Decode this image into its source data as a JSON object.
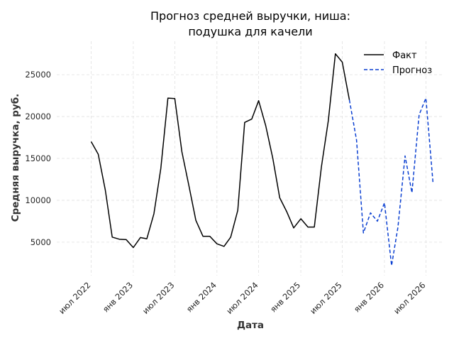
{
  "chart_data": {
    "type": "line",
    "title_lines": [
      "Прогноз средней выручки, ниша:",
      "подушка для качели"
    ],
    "xlabel": "Дата",
    "ylabel": "Средняя выручка, руб.",
    "x_ticks": [
      {
        "label": "июл 2022",
        "date": "2022-07-01"
      },
      {
        "label": "янв 2023",
        "date": "2023-01-01"
      },
      {
        "label": "июл 2023",
        "date": "2023-07-01"
      },
      {
        "label": "янв 2024",
        "date": "2024-01-01"
      },
      {
        "label": "июл 2024",
        "date": "2024-07-01"
      },
      {
        "label": "янв 2025",
        "date": "2025-01-01"
      },
      {
        "label": "июл 2025",
        "date": "2025-07-01"
      },
      {
        "label": "янв 2026",
        "date": "2026-01-01"
      },
      {
        "label": "июл 2026",
        "date": "2026-07-01"
      }
    ],
    "y_ticks": [
      5000,
      10000,
      15000,
      20000,
      25000
    ],
    "xlim": [
      "2022-02-01",
      "2026-09-15"
    ],
    "ylim": [
      1000,
      29000
    ],
    "grid": true,
    "legend_position": "top-right",
    "series": [
      {
        "name": "Факт",
        "color": "#000000",
        "style": "solid",
        "points": [
          [
            "2022-07-01",
            17000
          ],
          [
            "2022-08-01",
            15500
          ],
          [
            "2022-09-01",
            11200
          ],
          [
            "2022-10-01",
            5600
          ],
          [
            "2022-11-01",
            5350
          ],
          [
            "2022-12-01",
            5300
          ],
          [
            "2023-01-01",
            4350
          ],
          [
            "2023-02-01",
            5550
          ],
          [
            "2023-03-01",
            5400
          ],
          [
            "2023-04-01",
            8400
          ],
          [
            "2023-05-01",
            13800
          ],
          [
            "2023-06-01",
            22200
          ],
          [
            "2023-07-01",
            22150
          ],
          [
            "2023-08-01",
            15800
          ],
          [
            "2023-09-01",
            11700
          ],
          [
            "2023-10-01",
            7600
          ],
          [
            "2023-11-01",
            5700
          ],
          [
            "2023-12-01",
            5700
          ],
          [
            "2024-01-01",
            4800
          ],
          [
            "2024-02-01",
            4500
          ],
          [
            "2024-03-01",
            5600
          ],
          [
            "2024-04-01",
            8800
          ],
          [
            "2024-05-01",
            19300
          ],
          [
            "2024-06-01",
            19700
          ],
          [
            "2024-07-01",
            21900
          ],
          [
            "2024-08-01",
            18900
          ],
          [
            "2024-09-01",
            15000
          ],
          [
            "2024-10-01",
            10300
          ],
          [
            "2024-11-01",
            8600
          ],
          [
            "2024-12-01",
            6700
          ],
          [
            "2025-01-01",
            7800
          ],
          [
            "2025-02-01",
            6800
          ],
          [
            "2025-03-01",
            6800
          ],
          [
            "2025-04-01",
            14000
          ],
          [
            "2025-05-01",
            19500
          ],
          [
            "2025-06-01",
            27500
          ],
          [
            "2025-07-01",
            26500
          ],
          [
            "2025-08-01",
            22000
          ]
        ]
      },
      {
        "name": "Прогноз",
        "color": "#0a3fd1",
        "style": "dashed",
        "points": [
          [
            "2025-08-01",
            22000
          ],
          [
            "2025-09-01",
            17200
          ],
          [
            "2025-10-01",
            6100
          ],
          [
            "2025-11-01",
            8500
          ],
          [
            "2025-12-01",
            7500
          ],
          [
            "2026-01-01",
            9700
          ],
          [
            "2026-02-01",
            2200
          ],
          [
            "2026-03-01",
            6800
          ],
          [
            "2026-04-01",
            15300
          ],
          [
            "2026-05-01",
            10900
          ],
          [
            "2026-06-01",
            20200
          ],
          [
            "2026-07-01",
            22200
          ],
          [
            "2026-08-01",
            12000
          ]
        ]
      }
    ]
  }
}
